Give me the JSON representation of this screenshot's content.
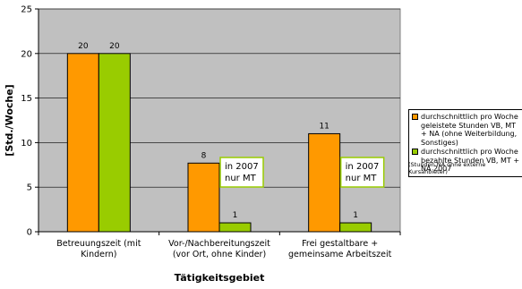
{
  "chart_data": {
    "type": "bar",
    "categories": [
      [
        "Betreuungszeit (mit",
        "Kindern)"
      ],
      [
        "Vor-/Nachbereitungszeit",
        "(vor Ort, ohne Kinder)"
      ],
      [
        "Frei gestaltbare +",
        "gemeinsame Arbeitszeit"
      ]
    ],
    "series": [
      {
        "name": "durchschnittlich pro Woche geleistete Stunden VB, MT + NA (ohne Weiterbildung, Sonstiges)",
        "values": [
          20,
          7.7,
          11
        ],
        "labels": [
          "20",
          "8",
          "11"
        ],
        "color": "#FF9900"
      },
      {
        "name": "durchschnittlich pro Woche bezahlte Stunden VB, MT + NA 2007",
        "values": [
          20,
          1,
          1
        ],
        "labels": [
          "20",
          "1",
          "1"
        ],
        "color": "#99CC00"
      }
    ],
    "xlabel": "Tätigkeitsgebiet",
    "ylabel": "[Std./Woche]",
    "ylim": [
      0,
      25
    ],
    "yticks": [
      0,
      5,
      10,
      15,
      20,
      25
    ],
    "grid": true,
    "plot_background": "#C0C0C0",
    "legend_position": "right",
    "annotations": [
      {
        "lines": [
          "in 2007",
          "nur MT"
        ],
        "category_index": 1
      },
      {
        "lines": [
          "in 2007",
          "nur MT"
        ],
        "category_index": 2
      }
    ]
  },
  "footnote": "(Stunden NA ohne externe Kursanbieter)"
}
